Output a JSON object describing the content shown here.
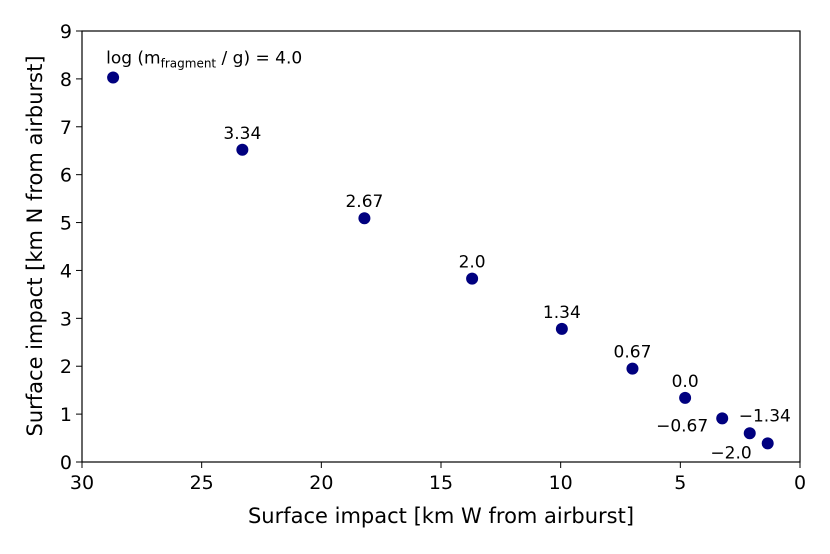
{
  "chart_data": {
    "type": "scatter",
    "xlabel": "Surface impact [km W from airburst]",
    "ylabel": "Surface impact [km N from airburst]",
    "xlim": [
      30,
      0
    ],
    "ylim": [
      0,
      9
    ],
    "x_inverted": true,
    "x_ticks": [
      "30",
      "25",
      "20",
      "15",
      "10",
      "5",
      "0"
    ],
    "y_ticks": [
      "0",
      "1",
      "2",
      "3",
      "4",
      "5",
      "6",
      "7",
      "8",
      "9"
    ],
    "grid": false,
    "marker_color": "#00007f",
    "annotation_prefix": "log (m",
    "annotation_subscript": "fragment",
    "annotation_suffix": " / g) = 4.0",
    "points": [
      {
        "x": 28.7,
        "y": 8.03,
        "label": ""
      },
      {
        "x": 23.3,
        "y": 6.52,
        "label": "3.34"
      },
      {
        "x": 18.2,
        "y": 5.09,
        "label": "2.67"
      },
      {
        "x": 13.7,
        "y": 3.83,
        "label": "2.0"
      },
      {
        "x": 9.95,
        "y": 2.78,
        "label": "1.34"
      },
      {
        "x": 7.0,
        "y": 1.95,
        "label": "0.67"
      },
      {
        "x": 4.8,
        "y": 1.34,
        "label": "0.0"
      },
      {
        "x": 3.25,
        "y": 0.91,
        "label": "−0.67"
      },
      {
        "x": 2.1,
        "y": 0.6,
        "label": "−1.34"
      },
      {
        "x": 1.35,
        "y": 0.39,
        "label": "−2.0"
      }
    ]
  }
}
